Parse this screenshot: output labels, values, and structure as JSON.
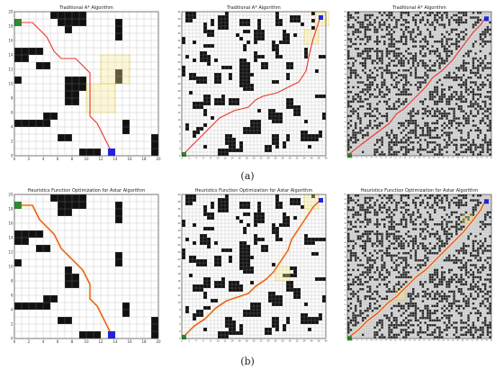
{
  "figure": {
    "caption_a": "(a)",
    "caption_b": "(b)",
    "colors": {
      "obstacle": "#111111",
      "free": "#ffffff",
      "dense_free": "#d8d8d8",
      "path": "#e8352c",
      "explored": "#f3e58a",
      "start": "#2e8b2e",
      "goal": "#2222dd"
    }
  },
  "panels": [
    {
      "id": "a1",
      "title": "Traditional A* Algorithm",
      "grid": 20,
      "density": 0.28,
      "seed": 11,
      "style": "blocks",
      "path": [
        [
          1,
          19
        ],
        [
          3,
          19
        ],
        [
          4,
          18
        ],
        [
          5,
          17
        ],
        [
          6,
          15
        ],
        [
          7,
          14
        ],
        [
          9,
          14
        ],
        [
          10,
          13
        ],
        [
          11,
          12
        ],
        [
          11,
          11
        ],
        [
          11,
          10
        ],
        [
          11,
          6
        ],
        [
          12,
          5
        ],
        [
          13,
          3
        ],
        [
          14,
          1
        ]
      ],
      "start": [
        1,
        19
      ],
      "goal": [
        14,
        1
      ],
      "explored": [
        [
          12,
          8
        ],
        [
          14,
          12
        ]
      ]
    },
    {
      "id": "a2",
      "title": "Traditional A* Algorithm",
      "grid": 40,
      "density": 0.45,
      "seed": 23,
      "style": "blocks",
      "path": [
        [
          1,
          1
        ],
        [
          3,
          3
        ],
        [
          5,
          5
        ],
        [
          9,
          9
        ],
        [
          11,
          11
        ],
        [
          13,
          12
        ],
        [
          15,
          13
        ],
        [
          19,
          14
        ],
        [
          21,
          16
        ],
        [
          23,
          17
        ],
        [
          27,
          18
        ],
        [
          29,
          19
        ],
        [
          31,
          20
        ],
        [
          33,
          21
        ],
        [
          35,
          24
        ],
        [
          36,
          29
        ],
        [
          37,
          33
        ],
        [
          38,
          36
        ],
        [
          39,
          39
        ]
      ],
      "start": [
        1,
        1
      ],
      "goal": [
        39,
        39
      ],
      "explored": [
        [
          36,
          33
        ],
        [
          39,
          38
        ]
      ]
    },
    {
      "id": "a3",
      "title": "Traditional A* Algorithm",
      "grid": 60,
      "density": 0.42,
      "seed": 37,
      "style": "dense",
      "path": [
        [
          1,
          1
        ],
        [
          6,
          5
        ],
        [
          10,
          8
        ],
        [
          14,
          11
        ],
        [
          18,
          14
        ],
        [
          21,
          18
        ],
        [
          24,
          20
        ],
        [
          27,
          23
        ],
        [
          30,
          26
        ],
        [
          33,
          29
        ],
        [
          36,
          33
        ],
        [
          40,
          36
        ],
        [
          44,
          40
        ],
        [
          47,
          44
        ],
        [
          50,
          48
        ],
        [
          53,
          52
        ],
        [
          56,
          55
        ],
        [
          58,
          58
        ]
      ],
      "start": [
        1,
        1
      ],
      "goal": [
        58,
        58
      ],
      "explored": []
    },
    {
      "id": "b1",
      "title": "Heuristics Function Optimization for Astar Algorithm",
      "grid": 20,
      "density": 0.28,
      "seed": 11,
      "style": "blocks",
      "path": [
        [
          1,
          19
        ],
        [
          3,
          19
        ],
        [
          4,
          17
        ],
        [
          5,
          16
        ],
        [
          6,
          15
        ],
        [
          7,
          13
        ],
        [
          8,
          12
        ],
        [
          9,
          11
        ],
        [
          10,
          10
        ],
        [
          11,
          8
        ],
        [
          11,
          6
        ],
        [
          12,
          5
        ],
        [
          13,
          3
        ],
        [
          14,
          1
        ]
      ],
      "start": [
        1,
        19
      ],
      "goal": [
        14,
        1
      ],
      "explored": []
    },
    {
      "id": "b2",
      "title": "Heuristics Function Optimization for Astar Algorithm",
      "grid": 40,
      "density": 0.45,
      "seed": 23,
      "style": "blocks",
      "path": [
        [
          1,
          1
        ],
        [
          4,
          4
        ],
        [
          7,
          6
        ],
        [
          10,
          9
        ],
        [
          13,
          11
        ],
        [
          16,
          12
        ],
        [
          19,
          13
        ],
        [
          21,
          15
        ],
        [
          24,
          17
        ],
        [
          26,
          19
        ],
        [
          28,
          22
        ],
        [
          30,
          25
        ],
        [
          31,
          28
        ],
        [
          33,
          31
        ],
        [
          35,
          34
        ],
        [
          37,
          37
        ],
        [
          39,
          39
        ]
      ],
      "start": [
        1,
        1
      ],
      "goal": [
        39,
        39
      ],
      "explored": [
        [
          28,
          18
        ],
        [
          36,
          38
        ]
      ]
    },
    {
      "id": "b3",
      "title": "Heuristics Function Optimization for Astar Algorithm",
      "grid": 60,
      "density": 0.42,
      "seed": 37,
      "style": "dense",
      "path": [
        [
          1,
          1
        ],
        [
          5,
          4
        ],
        [
          9,
          8
        ],
        [
          13,
          11
        ],
        [
          17,
          15
        ],
        [
          21,
          18
        ],
        [
          25,
          22
        ],
        [
          29,
          26
        ],
        [
          33,
          29
        ],
        [
          37,
          33
        ],
        [
          41,
          37
        ],
        [
          45,
          41
        ],
        [
          49,
          45
        ],
        [
          53,
          50
        ],
        [
          56,
          54
        ],
        [
          58,
          58
        ]
      ],
      "start": [
        1,
        1
      ],
      "goal": [
        58,
        58
      ],
      "explored": [
        [
          22,
          18
        ],
        [
          50,
          50
        ]
      ]
    }
  ]
}
